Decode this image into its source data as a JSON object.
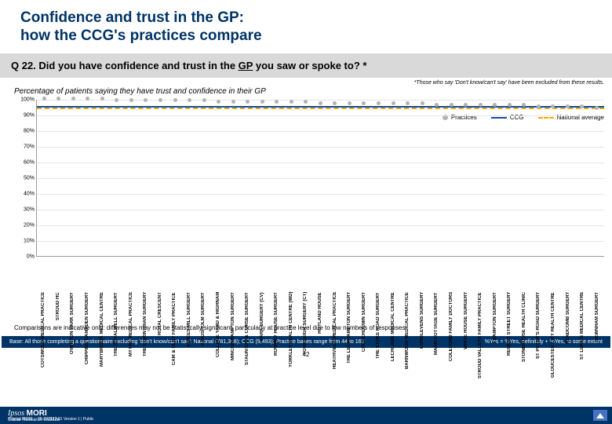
{
  "title_line1": "Confidence and trust in the GP:",
  "title_line2": "how the CCG's practices compare",
  "question": "Q 22. Did you have confidence and trust in the ",
  "question_underlined": "GP",
  "question_tail": " you saw or spoke to? *",
  "exclusion_note": "*Those who say 'Don't know/can't say' have been excluded from these results.",
  "subheading": "Percentage of patients saying they have trust and confidence in their GP",
  "legend": {
    "practices": "Practices",
    "ccg": "CCG",
    "national": "National average"
  },
  "colors": {
    "brand_dark": "#003366",
    "practice_dot": "#b2b2b2",
    "ccg_line": "#164b9c",
    "national_line": "#f2a900",
    "grid": "#e6e6e6",
    "axis": "#999999",
    "badge": "#4472c4"
  },
  "chart": {
    "ylim": [
      0,
      100
    ],
    "ytick_step": 10,
    "ytick_labels": [
      "0%",
      "10%",
      "20%",
      "30%",
      "40%",
      "50%",
      "60%",
      "70%",
      "80%",
      "90%",
      "100%"
    ],
    "ccg_value": 96,
    "national_value": 95,
    "practices": [
      {
        "label": "COTSWOLD MEDICAL PRACTICE",
        "value": 100
      },
      {
        "label": "STROUD HC",
        "value": 100
      },
      {
        "label": "OVERTON PARK SURGERY",
        "value": 100
      },
      {
        "label": "CHIPPING CAMPDEN SURGERY",
        "value": 100
      },
      {
        "label": "MARYBROOK MEDICAL CENTRE",
        "value": 100
      },
      {
        "label": "THE ROYALWELL SURGERY",
        "value": 99
      },
      {
        "label": "MYTHE MEDICAL PRACTICE",
        "value": 99
      },
      {
        "label": "THE CORINTHIAN SURGERY",
        "value": 99
      },
      {
        "label": "ROYAL CRESCENT",
        "value": 99
      },
      {
        "label": "CAM & ULEY FAMILY PRACTICE",
        "value": 99
      },
      {
        "label": "PRICES MILL SURGERY",
        "value": 99
      },
      {
        "label": "KINGSHOLM SURGERY",
        "value": 99
      },
      {
        "label": "COLLEGE YARD & HIGHNAM",
        "value": 98
      },
      {
        "label": "MINCHINHAMPTON SURGERY",
        "value": 98
      },
      {
        "label": "STAUNTON & CORSE SURGERY",
        "value": 98
      },
      {
        "label": "PARK SURGERY (CV)",
        "value": 98
      },
      {
        "label": "ROWNEY HOUSE SURGERY",
        "value": 98
      },
      {
        "label": "YORKLEY HEALTH CENTRE (WD)",
        "value": 98
      },
      {
        "label": "YORKLEIGH SURGERY (CT)",
        "value": 98
      },
      {
        "label": "HOYLAND HOUSE",
        "value": 97
      },
      {
        "label": "HEATHVILLE MEDICAL PRACTICE",
        "value": 97
      },
      {
        "label": "THE LECKHAMPTON SURGERY",
        "value": 97
      },
      {
        "label": "CHURCHDOWN SURGERY",
        "value": 97
      },
      {
        "label": "THE STOKE ROAD SURGERY",
        "value": 97
      },
      {
        "label": "LECHLADE MEDICAL CENTRE",
        "value": 97
      },
      {
        "label": "BARNWOOD MEDICAL PRACTICE",
        "value": 97
      },
      {
        "label": "LONGLEVENS SURGERY",
        "value": 97
      },
      {
        "label": "MANN COTTAGE SURGERY",
        "value": 96
      },
      {
        "label": "COLEFORD FAMILY DOCTORS",
        "value": 96
      },
      {
        "label": "WHITE HOUSE SURGERY",
        "value": 96
      },
      {
        "label": "STROUD VALLEYS FAMILY PRACTICE",
        "value": 96
      },
      {
        "label": "FRAMPTON SURGERY",
        "value": 96
      },
      {
        "label": "REGENT STREET SURGERY",
        "value": 96
      },
      {
        "label": "STONEHOUSE HEALTH CLINIC",
        "value": 96
      },
      {
        "label": "ST PETER'S ROAD SURGERY",
        "value": 95
      },
      {
        "label": "GLOUCESTER CITY HEALTH CENTRE",
        "value": 95
      },
      {
        "label": "RENDCOMB SURGERY",
        "value": 95
      },
      {
        "label": "ST LUKE'S MEDICAL CENTRE",
        "value": 95
      },
      {
        "label": "NEWNHAM SURGERY",
        "value": 94
      }
    ]
  },
  "comparison_note": "Comparisons are indicative only: differences may not be statistically significant, particularly at practice level due to low numbers of responses",
  "base_text": "Base: All those completing a questionnaire excluding 'don't know/can't say': National (781,308); CCG (9,493); Practice bases range from 44 to 169",
  "yes_note": "%Yes = %Yes, definitely + %Yes, to some extent",
  "page_number": "42",
  "footer": {
    "ipsos": "Ipsos",
    "mori": "MORI",
    "sri": "Social Research Institute",
    "copyright": "© Ipsos MORI",
    "version": "15-032172-01 Version 1 | Public"
  }
}
